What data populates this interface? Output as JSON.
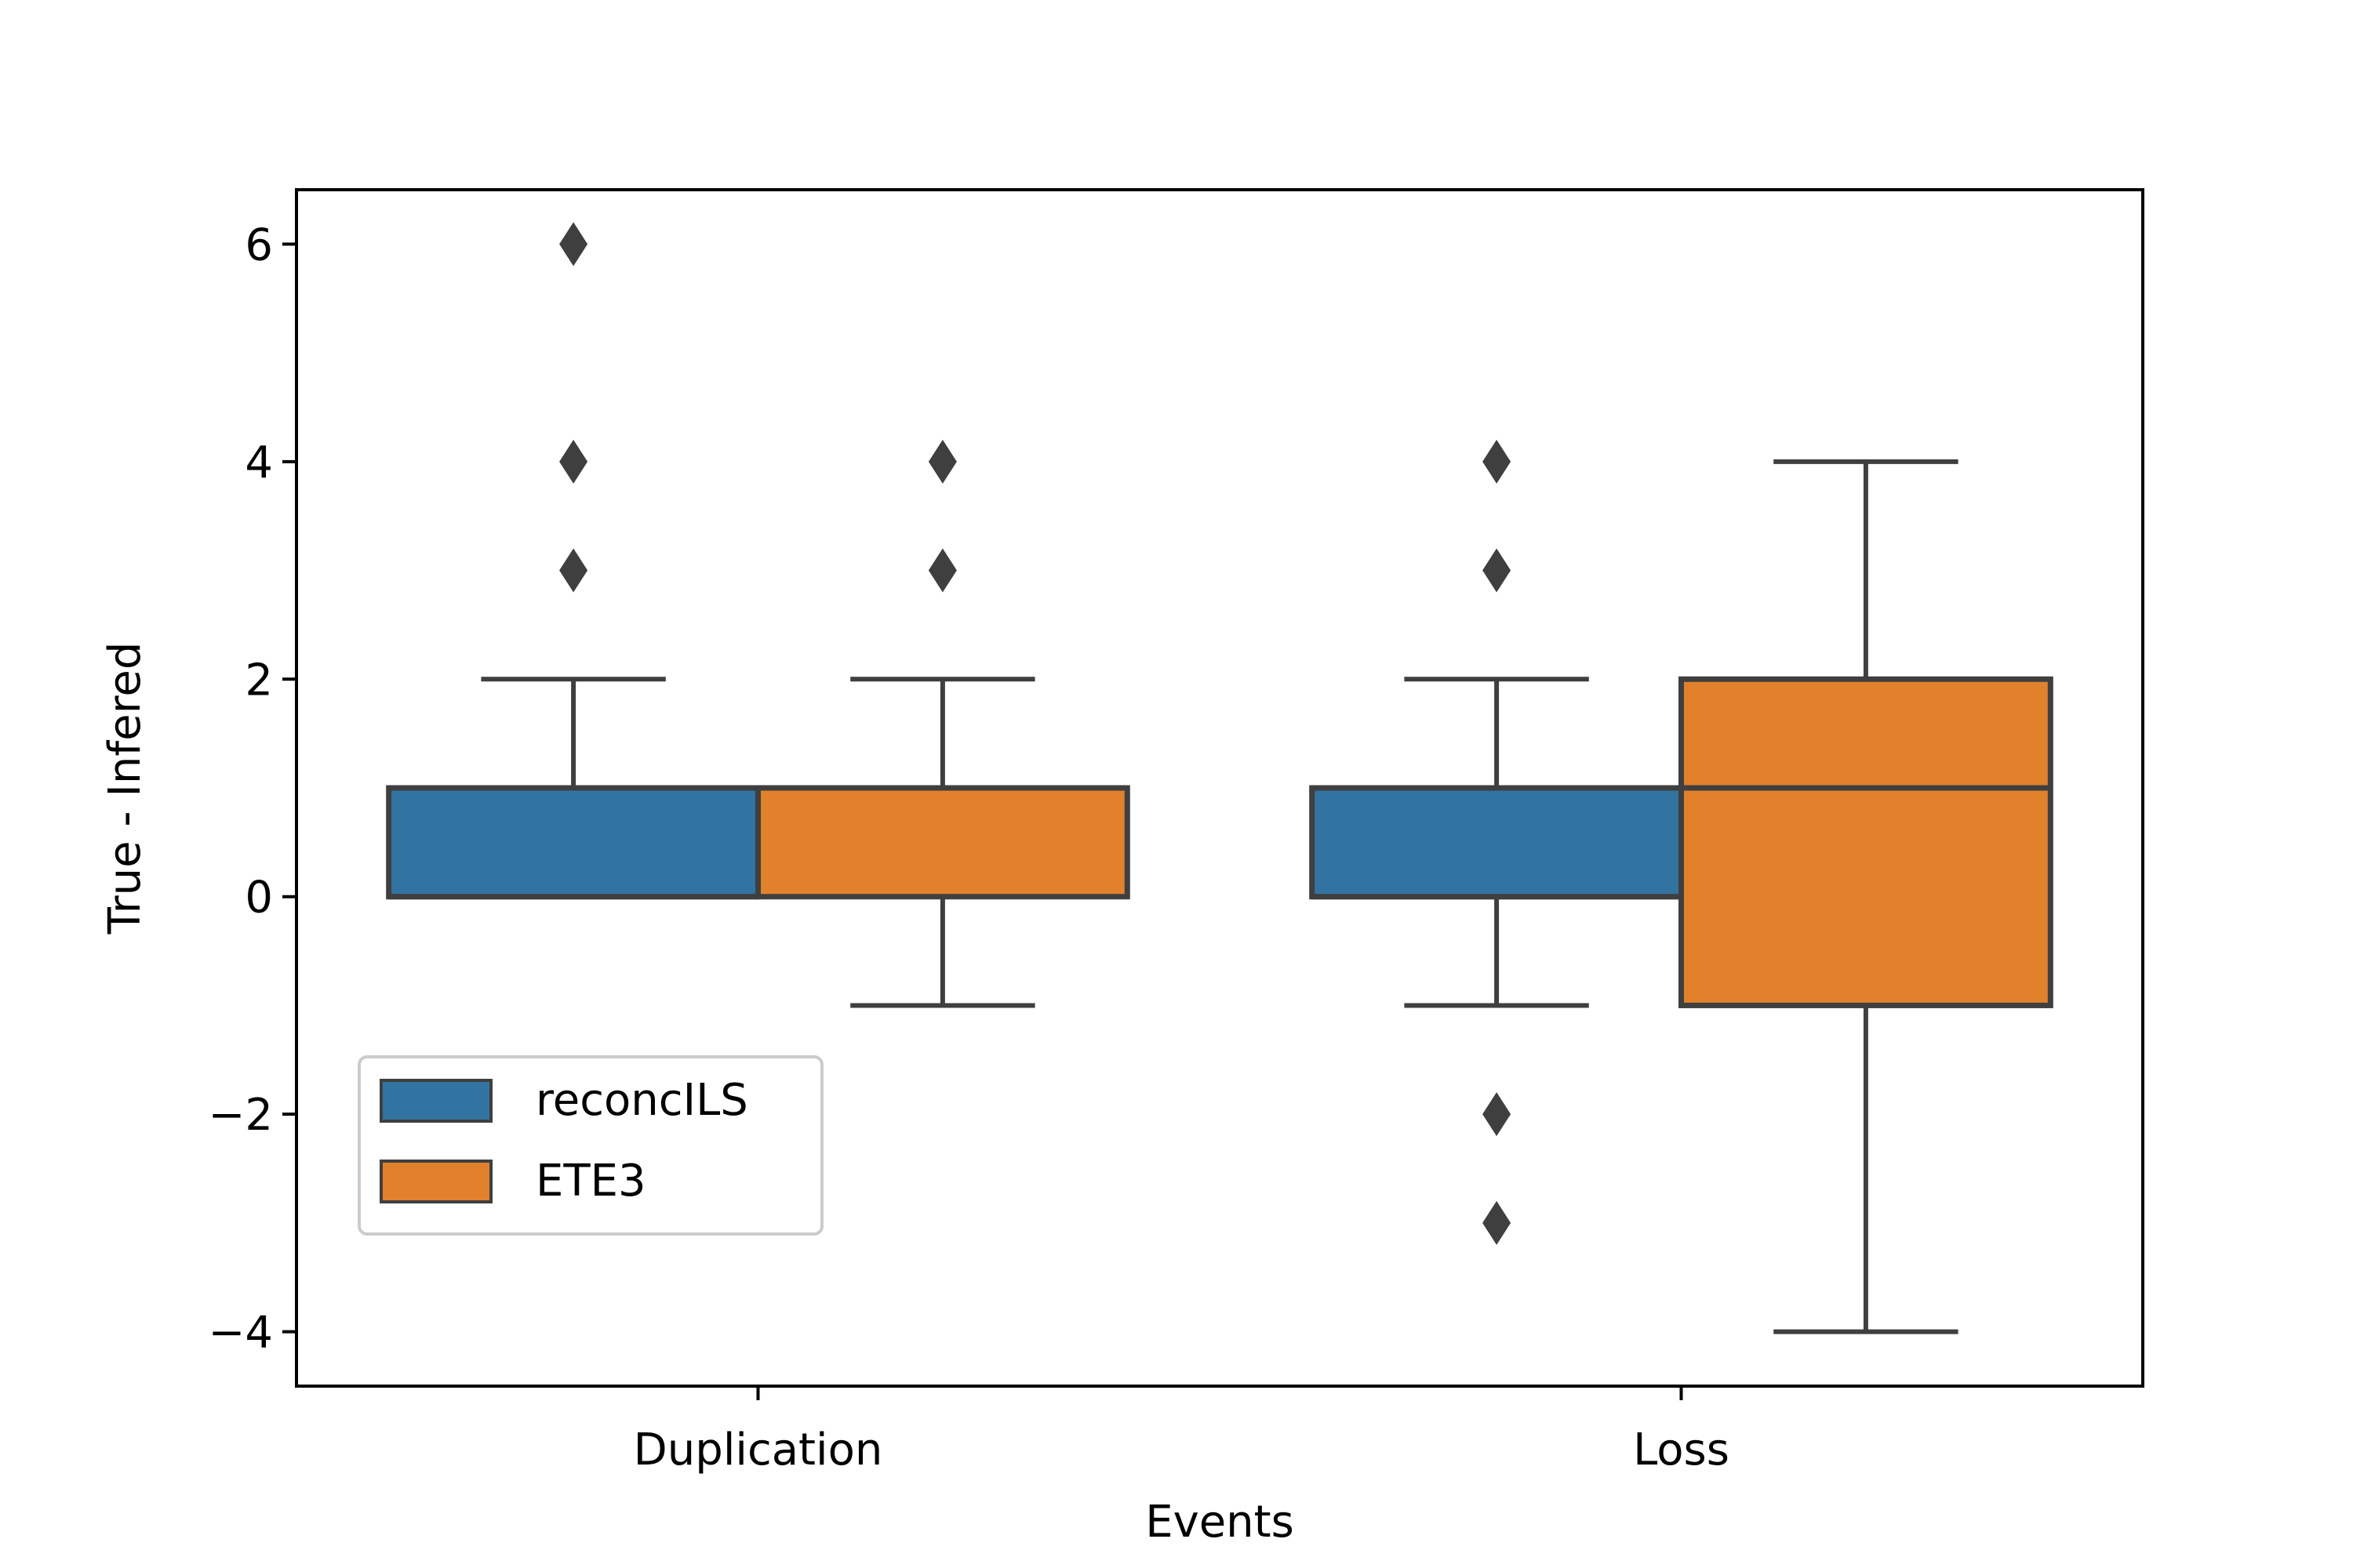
{
  "chart_data": {
    "type": "box",
    "title": "",
    "xlabel": "Events",
    "ylabel": "True - Infered",
    "categories": [
      "Duplication",
      "Loss"
    ],
    "ylim": [
      -4.5,
      6.5
    ],
    "yticks": [
      -4,
      -2,
      0,
      2,
      4,
      6
    ],
    "ytick_labels": [
      "−4",
      "−2",
      "0",
      "2",
      "4",
      "6"
    ],
    "grid": false,
    "legend_position": "lower-left",
    "series": [
      {
        "name": "reconcILS",
        "color": "#3274a1",
        "boxes": [
          {
            "category": "Duplication",
            "whisker_low": 0,
            "q1": 0,
            "median": 0,
            "q3": 1,
            "whisker_high": 2,
            "outliers": [
              3,
              4,
              6
            ]
          },
          {
            "category": "Loss",
            "whisker_low": -1,
            "q1": 0,
            "median": 0,
            "q3": 1,
            "whisker_high": 2,
            "outliers": [
              -3,
              -2,
              3,
              4
            ]
          }
        ]
      },
      {
        "name": "ETE3",
        "color": "#e1812c",
        "boxes": [
          {
            "category": "Duplication",
            "whisker_low": -1,
            "q1": 0,
            "median": 1,
            "q3": 1,
            "whisker_high": 2,
            "outliers": [
              3,
              4
            ]
          },
          {
            "category": "Loss",
            "whisker_low": -4,
            "q1": -1,
            "median": 1,
            "q3": 2,
            "whisker_high": 4,
            "outliers": []
          }
        ]
      }
    ]
  }
}
